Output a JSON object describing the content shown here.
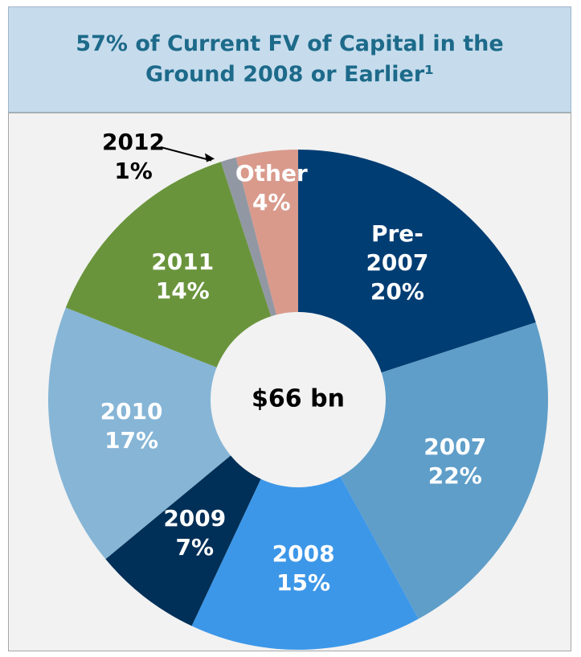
{
  "chart_data": {
    "type": "donut",
    "title": "57% of Current FV of Capital in the Ground 2008 or Earlier¹",
    "center_label": "$66 bn",
    "categories": [
      "Pre-2007",
      "2007",
      "2008",
      "2009",
      "2010",
      "2011",
      "2012",
      "Other"
    ],
    "values": [
      20,
      22,
      15,
      7,
      17,
      14,
      1,
      4
    ],
    "value_labels": [
      "20%",
      "22%",
      "15%",
      "7%",
      "17%",
      "14%",
      "1%",
      "4%"
    ],
    "colors": [
      "#003d73",
      "#5f9ec9",
      "#3d97e8",
      "#002f57",
      "#86b5d6",
      "#6a943c",
      "#9198a3",
      "#d99a8c"
    ]
  }
}
